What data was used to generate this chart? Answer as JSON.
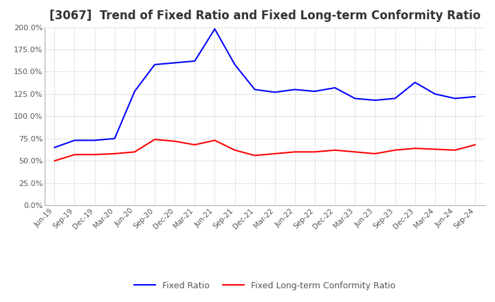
{
  "title": "[3067]  Trend of Fixed Ratio and Fixed Long-term Conformity Ratio",
  "x_labels": [
    "Jun-19",
    "Sep-19",
    "Dec-19",
    "Mar-20",
    "Jun-20",
    "Sep-20",
    "Dec-20",
    "Mar-21",
    "Jun-21",
    "Sep-21",
    "Dec-21",
    "Mar-22",
    "Jun-22",
    "Sep-22",
    "Dec-22",
    "Mar-23",
    "Jun-23",
    "Sep-23",
    "Dec-23",
    "Mar-24",
    "Jun-24",
    "Sep-24"
  ],
  "fixed_ratio": [
    65.0,
    73.0,
    73.0,
    75.0,
    128.0,
    158.0,
    160.0,
    162.0,
    198.0,
    158.0,
    130.0,
    127.0,
    130.0,
    128.0,
    132.0,
    120.0,
    118.0,
    120.0,
    138.0,
    125.0,
    120.0,
    122.0
  ],
  "fixed_lt_ratio": [
    50.0,
    57.0,
    57.0,
    58.0,
    60.0,
    74.0,
    72.0,
    68.0,
    73.0,
    62.0,
    56.0,
    58.0,
    60.0,
    60.0,
    62.0,
    60.0,
    58.0,
    62.0,
    64.0,
    63.0,
    62.0,
    68.0
  ],
  "fixed_ratio_color": "#0000ff",
  "fixed_lt_ratio_color": "#ff0000",
  "ylim": [
    0.0,
    200.0
  ],
  "yticks": [
    0.0,
    25.0,
    50.0,
    75.0,
    100.0,
    125.0,
    150.0,
    175.0,
    200.0
  ],
  "background_color": "#ffffff",
  "grid_color": "#aaaaaa",
  "title_fontsize": 12,
  "legend_labels": [
    "Fixed Ratio",
    "Fixed Long-term Conformity Ratio"
  ]
}
